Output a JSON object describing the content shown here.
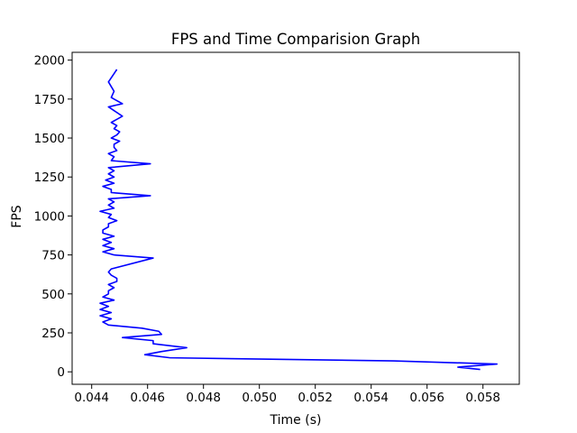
{
  "chart_data": {
    "type": "line",
    "title": "FPS and Time Comparision Graph",
    "xlabel": "Time (s)",
    "ylabel": "FPS",
    "xlim": [
      0.0433,
      0.0593
    ],
    "ylim": [
      -80,
      2050
    ],
    "xticks": [
      0.044,
      0.046,
      0.048,
      0.05,
      0.052,
      0.054,
      0.056,
      0.058
    ],
    "xtick_labels": [
      "0.044",
      "0.046",
      "0.048",
      "0.050",
      "0.052",
      "0.054",
      "0.056",
      "0.058"
    ],
    "yticks": [
      0,
      250,
      500,
      750,
      1000,
      1250,
      1500,
      1750,
      2000
    ],
    "ytick_labels": [
      "0",
      "250",
      "500",
      "750",
      "1000",
      "1250",
      "1500",
      "1750",
      "2000"
    ],
    "grid": false,
    "line_color": "#0000ff",
    "series": [
      {
        "x": [
          0.0579,
          0.0571,
          0.0585,
          0.0548,
          0.0468,
          0.0459,
          0.0465,
          0.0474,
          0.0462,
          0.0462,
          0.0451,
          0.0465,
          0.0464,
          0.0458,
          0.0446,
          0.0444,
          0.0447,
          0.0443,
          0.0447,
          0.0443,
          0.0446,
          0.0443,
          0.0448,
          0.0444,
          0.0446,
          0.0446,
          0.0448,
          0.0446,
          0.0449,
          0.0449,
          0.0447,
          0.0446,
          0.0447,
          0.0462,
          0.0448,
          0.0444,
          0.0448,
          0.0444,
          0.0447,
          0.0444,
          0.0448,
          0.0444,
          0.0444,
          0.0446,
          0.0446,
          0.0449,
          0.0446,
          0.0447,
          0.0443,
          0.0448,
          0.0446,
          0.0448,
          0.0446,
          0.0461,
          0.0447,
          0.0447,
          0.0444,
          0.0448,
          0.0445,
          0.0448,
          0.0446,
          0.0448,
          0.0446,
          0.0461,
          0.0447,
          0.0448,
          0.0446,
          0.0449,
          0.0448,
          0.0448,
          0.045,
          0.0447,
          0.0449,
          0.045,
          0.0448,
          0.0449,
          0.0447,
          0.0451,
          0.0446,
          0.0451,
          0.0447,
          0.0448,
          0.0446,
          0.0449
        ],
        "y": [
          15,
          30,
          50,
          70,
          90,
          110,
          130,
          155,
          180,
          200,
          220,
          240,
          260,
          280,
          300,
          320,
          340,
          360,
          380,
          400,
          420,
          440,
          460,
          480,
          500,
          520,
          540,
          560,
          580,
          600,
          620,
          640,
          660,
          730,
          750,
          770,
          790,
          810,
          830,
          850,
          870,
          890,
          910,
          930,
          950,
          970,
          990,
          1010,
          1030,
          1050,
          1070,
          1090,
          1110,
          1130,
          1150,
          1170,
          1190,
          1210,
          1230,
          1250,
          1270,
          1290,
          1310,
          1335,
          1355,
          1380,
          1400,
          1420,
          1440,
          1460,
          1480,
          1500,
          1520,
          1540,
          1560,
          1580,
          1600,
          1640,
          1700,
          1720,
          1760,
          1800,
          1860,
          1940
        ]
      }
    ]
  }
}
